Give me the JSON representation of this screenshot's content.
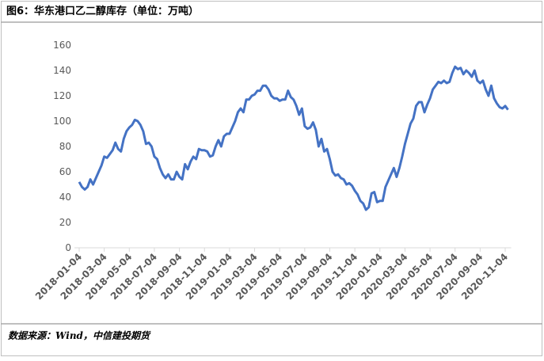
{
  "chart_data": {
    "type": "line",
    "title": "图6：华东港口乙二醇库存（单位：万吨）",
    "source": "数据来源：Wind，中信建投期货",
    "color": "#4472c4",
    "ylim": [
      0,
      160
    ],
    "yticks": [
      0,
      20,
      40,
      60,
      80,
      100,
      120,
      140,
      160
    ],
    "categories": [
      "2018-01-04",
      null,
      null,
      null,
      null,
      null,
      null,
      null,
      null,
      "2018-03-04",
      null,
      null,
      null,
      null,
      null,
      null,
      null,
      null,
      "2018-05-04",
      null,
      null,
      null,
      null,
      null,
      null,
      null,
      null,
      "2018-07-04",
      null,
      null,
      null,
      null,
      null,
      null,
      null,
      null,
      "2018-09-04",
      null,
      null,
      null,
      null,
      null,
      null,
      null,
      null,
      "2018-11-04",
      null,
      null,
      null,
      null,
      null,
      null,
      null,
      null,
      "2019-01-04",
      null,
      null,
      null,
      null,
      null,
      null,
      null,
      null,
      "2019-03-04",
      null,
      null,
      null,
      null,
      null,
      null,
      null,
      null,
      "2019-05-04",
      null,
      null,
      null,
      null,
      null,
      null,
      null,
      null,
      "2019-07-04",
      null,
      null,
      null,
      null,
      null,
      null,
      null,
      null,
      "2019-09-04",
      null,
      null,
      null,
      null,
      null,
      null,
      null,
      null,
      "2019-11-04",
      null,
      null,
      null,
      null,
      null,
      null,
      null,
      null,
      "2020-01-04",
      null,
      null,
      null,
      null,
      null,
      null,
      null,
      null,
      "2020-03-04",
      null,
      null,
      null,
      null,
      null,
      null,
      null,
      null,
      "2020-05-04",
      null,
      null,
      null,
      null,
      null,
      null,
      null,
      null,
      "2020-07-04",
      null,
      null,
      null,
      null,
      null,
      null,
      null,
      null,
      "2020-09-04",
      null,
      null,
      null,
      null,
      null,
      null,
      null,
      null,
      "2020-11-04",
      null
    ],
    "values": [
      52,
      48,
      46,
      48,
      54,
      50,
      55,
      60,
      65,
      72,
      71,
      74,
      77,
      83,
      78,
      76,
      86,
      92,
      95,
      97,
      101,
      100,
      97,
      92,
      82,
      83,
      80,
      72,
      70,
      63,
      58,
      55,
      58,
      54,
      54,
      60,
      56,
      54,
      66,
      62,
      68,
      72,
      70,
      78,
      77,
      77,
      76,
      72,
      73,
      80,
      85,
      80,
      88,
      90,
      90,
      95,
      100,
      107,
      110,
      107,
      117,
      117,
      120,
      121,
      124,
      124,
      128,
      128,
      125,
      120,
      118,
      118,
      116,
      117,
      117,
      124,
      119,
      117,
      112,
      105,
      110,
      96,
      94,
      95,
      99,
      93,
      80,
      86,
      76,
      78,
      70,
      60,
      57,
      58,
      55,
      54,
      50,
      51,
      49,
      45,
      42,
      37,
      35,
      30,
      32,
      43,
      44,
      36,
      37,
      37,
      48,
      53,
      58,
      63,
      56,
      63,
      72,
      82,
      90,
      98,
      102,
      112,
      115,
      115,
      107,
      113,
      118,
      125,
      128,
      131,
      130,
      132,
      130,
      131,
      138,
      143,
      141,
      142,
      137,
      140,
      138,
      135,
      140,
      132,
      130,
      132,
      125,
      120,
      128,
      118,
      114,
      111,
      110,
      112,
      109
    ]
  }
}
